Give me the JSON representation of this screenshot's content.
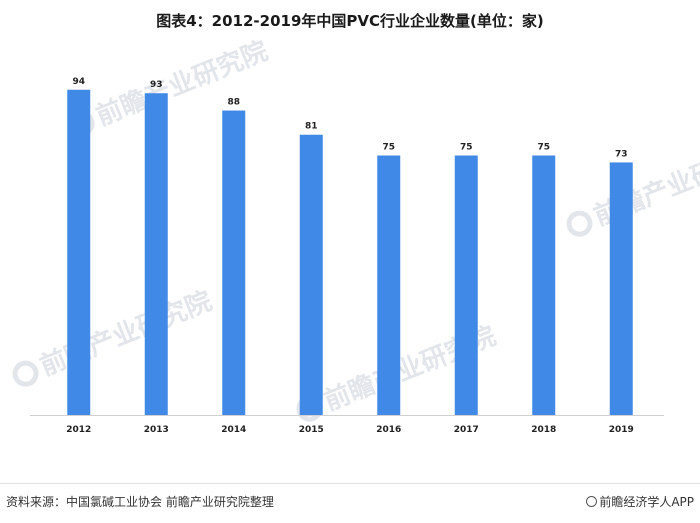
{
  "title": "图表4：2012-2019年中国PVC行业企业数量(单位：家)",
  "watermark": "前瞻产业研究院",
  "source": "资料来源：中国氯碱工业协会 前瞻产业研究院整理",
  "brand": "前瞻经济学人APP",
  "colors": {
    "bar": "#4189e6",
    "axis": "#d0d0d0"
  },
  "chart_data": {
    "type": "bar",
    "title": "图表4：2012-2019年中国PVC行业企业数量(单位：家)",
    "categories": [
      "2012",
      "2013",
      "2014",
      "2015",
      "2016",
      "2017",
      "2018",
      "2019"
    ],
    "values": [
      94,
      93,
      88,
      81,
      75,
      75,
      75,
      73
    ],
    "xlabel": "",
    "ylabel": "",
    "ylim": [
      0,
      100
    ],
    "grid": false,
    "data_labels": true
  }
}
